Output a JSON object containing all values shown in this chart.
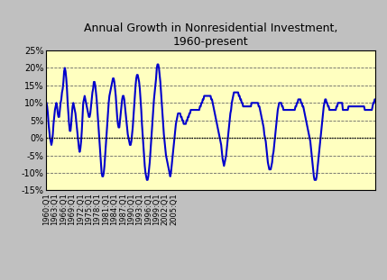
{
  "title": "Annual Growth in Nonresidential Investment,\n1960-present",
  "title_fontsize": 9,
  "background_color": "#FFFFC0",
  "outer_background": "#C0C0C0",
  "line_color": "#0000CC",
  "line_width": 1.5,
  "ylim": [
    -0.15,
    0.25
  ],
  "yticks": [
    -0.15,
    -0.1,
    -0.05,
    0.0,
    0.05,
    0.1,
    0.15,
    0.2,
    0.25
  ],
  "ytick_labels": [
    "-15%",
    "-10%",
    "-5%",
    "0%",
    "5%",
    "10%",
    "15%",
    "20%",
    "25%"
  ],
  "xtick_labels": [
    "1960:Q1",
    "1963:Q1",
    "1966:Q1",
    "1969:Q1",
    "1972:Q1",
    "1975:Q1",
    "1978:Q1",
    "1981:Q1",
    "1984:Q1",
    "1987:Q1",
    "1990:Q1",
    "1993:Q1",
    "1996:Q1",
    "1999:Q1",
    "2002:Q1",
    "2005:Q1"
  ],
  "values": [
    0.1,
    0.09,
    0.07,
    0.04,
    0.02,
    0.0,
    -0.01,
    -0.02,
    -0.01,
    0.01,
    0.04,
    0.06,
    0.08,
    0.09,
    0.1,
    0.09,
    0.07,
    0.06,
    0.06,
    0.08,
    0.1,
    0.11,
    0.13,
    0.14,
    0.16,
    0.19,
    0.2,
    0.19,
    0.17,
    0.14,
    0.1,
    0.07,
    0.04,
    0.02,
    0.02,
    0.04,
    0.07,
    0.09,
    0.1,
    0.09,
    0.08,
    0.07,
    0.05,
    0.03,
    0.01,
    -0.01,
    -0.03,
    -0.04,
    -0.03,
    -0.01,
    0.02,
    0.06,
    0.1,
    0.11,
    0.12,
    0.11,
    0.1,
    0.09,
    0.08,
    0.07,
    0.06,
    0.06,
    0.07,
    0.09,
    0.11,
    0.13,
    0.14,
    0.16,
    0.16,
    0.15,
    0.13,
    0.11,
    0.08,
    0.05,
    0.02,
    -0.01,
    -0.04,
    -0.07,
    -0.1,
    -0.11,
    -0.11,
    -0.1,
    -0.08,
    -0.05,
    -0.02,
    0.01,
    0.04,
    0.07,
    0.1,
    0.12,
    0.13,
    0.14,
    0.15,
    0.16,
    0.17,
    0.17,
    0.16,
    0.14,
    0.12,
    0.09,
    0.06,
    0.04,
    0.03,
    0.03,
    0.05,
    0.07,
    0.09,
    0.11,
    0.12,
    0.12,
    0.11,
    0.09,
    0.07,
    0.05,
    0.03,
    0.01,
    0.0,
    -0.01,
    -0.02,
    -0.02,
    -0.01,
    0.01,
    0.03,
    0.06,
    0.09,
    0.12,
    0.15,
    0.17,
    0.18,
    0.18,
    0.17,
    0.16,
    0.14,
    0.11,
    0.08,
    0.04,
    0.01,
    -0.02,
    -0.05,
    -0.08,
    -0.1,
    -0.11,
    -0.12,
    -0.12,
    -0.11,
    -0.09,
    -0.07,
    -0.04,
    -0.01,
    0.02,
    0.05,
    0.08,
    0.11,
    0.13,
    0.15,
    0.17,
    0.2,
    0.21,
    0.21,
    0.2,
    0.18,
    0.16,
    0.13,
    0.1,
    0.07,
    0.04,
    0.01,
    -0.01,
    -0.03,
    -0.05,
    -0.06,
    -0.07,
    -0.08,
    -0.09,
    -0.1,
    -0.11,
    -0.1,
    -0.08,
    -0.06,
    -0.04,
    -0.02,
    0.0,
    0.02,
    0.04,
    0.05,
    0.06,
    0.07,
    0.07,
    0.07,
    0.07,
    0.06,
    0.06,
    0.05,
    0.05,
    0.04,
    0.04,
    0.04,
    0.04,
    0.05,
    0.05,
    0.06,
    0.06,
    0.07,
    0.07,
    0.08,
    0.08,
    0.08,
    0.08,
    0.08,
    0.08,
    0.08,
    0.08,
    0.08,
    0.08,
    0.08,
    0.08,
    0.08,
    0.09,
    0.09,
    0.1,
    0.1,
    0.11,
    0.11,
    0.12,
    0.12,
    0.12,
    0.12,
    0.12,
    0.12,
    0.12,
    0.12,
    0.12,
    0.12,
    0.11,
    0.11,
    0.1,
    0.09,
    0.08,
    0.07,
    0.06,
    0.05,
    0.04,
    0.03,
    0.02,
    0.01,
    0.0,
    -0.01,
    -0.02,
    -0.04,
    -0.06,
    -0.07,
    -0.08,
    -0.07,
    -0.06,
    -0.05,
    -0.03,
    -0.01,
    0.01,
    0.03,
    0.05,
    0.07,
    0.08,
    0.1,
    0.11,
    0.12,
    0.13,
    0.13,
    0.13,
    0.13,
    0.13,
    0.13,
    0.13,
    0.12,
    0.12,
    0.11,
    0.11,
    0.1,
    0.1,
    0.09,
    0.09,
    0.09,
    0.09,
    0.09,
    0.09,
    0.09,
    0.09,
    0.09,
    0.09,
    0.09,
    0.09,
    0.1,
    0.1,
    0.1,
    0.1,
    0.1,
    0.1,
    0.1,
    0.1,
    0.1,
    0.1,
    0.09,
    0.09,
    0.08,
    0.07,
    0.06,
    0.05,
    0.04,
    0.03,
    0.01,
    0.0,
    -0.01,
    -0.03,
    -0.05,
    -0.07,
    -0.08,
    -0.09,
    -0.09,
    -0.09,
    -0.08,
    -0.07,
    -0.05,
    -0.04,
    -0.02,
    0.0,
    0.02,
    0.04,
    0.06,
    0.08,
    0.09,
    0.1,
    0.1,
    0.1,
    0.1,
    0.09,
    0.09,
    0.08,
    0.08,
    0.08,
    0.08,
    0.08,
    0.08,
    0.08,
    0.08,
    0.08,
    0.08,
    0.08,
    0.08,
    0.08,
    0.08,
    0.08,
    0.08,
    0.08,
    0.09,
    0.09,
    0.1,
    0.1,
    0.11,
    0.11,
    0.11,
    0.11,
    0.1,
    0.1,
    0.09,
    0.09,
    0.08,
    0.07,
    0.06,
    0.05,
    0.04,
    0.03,
    0.02,
    0.01,
    0.0,
    -0.01,
    -0.03,
    -0.05,
    -0.07,
    -0.09,
    -0.11,
    -0.12,
    -0.12,
    -0.12,
    -0.11,
    -0.09,
    -0.07,
    -0.05,
    -0.03,
    -0.01,
    0.01,
    0.03,
    0.05,
    0.07,
    0.09,
    0.1,
    0.11,
    0.11,
    0.1,
    0.1,
    0.09,
    0.09,
    0.08,
    0.08,
    0.08,
    0.08,
    0.08,
    0.08,
    0.08,
    0.08,
    0.08,
    0.08,
    0.09,
    0.09,
    0.1,
    0.1,
    0.1,
    0.1,
    0.1,
    0.1,
    0.1,
    0.08,
    0.08,
    0.08,
    0.08,
    0.08,
    0.08,
    0.08,
    0.08,
    0.09,
    0.09,
    0.09,
    0.09,
    0.09,
    0.09,
    0.09,
    0.09,
    0.09,
    0.09,
    0.09,
    0.09,
    0.09,
    0.09,
    0.09,
    0.09,
    0.09,
    0.09,
    0.09,
    0.09,
    0.09,
    0.09,
    0.09,
    0.08,
    0.08,
    0.08,
    0.08,
    0.08,
    0.08,
    0.08,
    0.08,
    0.08,
    0.08,
    0.08,
    0.09,
    0.1,
    0.1,
    0.11,
    0.11
  ]
}
